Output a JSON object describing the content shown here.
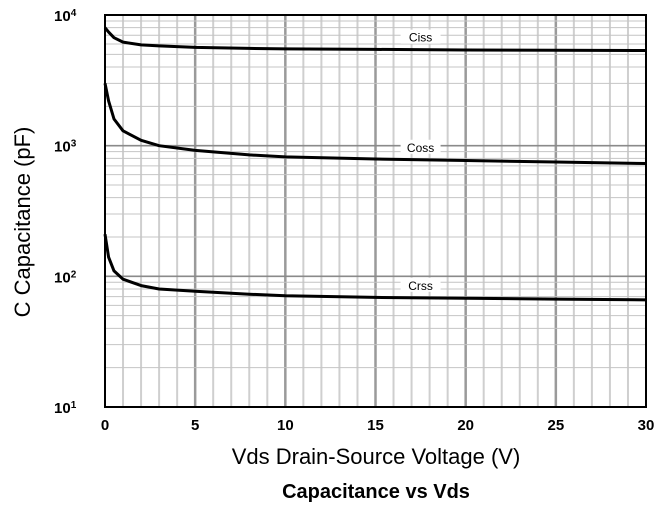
{
  "chart_data": {
    "type": "line",
    "title": "Capacitance vs Vds",
    "xlabel": "Vds Drain-Source Voltage (V)",
    "ylabel": "C Capacitance (pF)",
    "xlim": [
      0,
      30
    ],
    "ylim": [
      10,
      10000
    ],
    "yscale": "log",
    "grid": true,
    "x_ticks": [
      "0",
      "5",
      "10",
      "15",
      "20",
      "25",
      "30"
    ],
    "y_ticks": [
      {
        "base": "10",
        "exp": "1"
      },
      {
        "base": "10",
        "exp": "2"
      },
      {
        "base": "10",
        "exp": "3"
      },
      {
        "base": "10",
        "exp": "4"
      }
    ],
    "series": [
      {
        "name": "Ciss",
        "x": [
          0,
          0.2,
          0.5,
          1,
          2,
          3,
          5,
          8,
          10,
          15,
          20,
          25,
          30
        ],
        "y": [
          8000,
          7400,
          6700,
          6200,
          5900,
          5800,
          5650,
          5550,
          5500,
          5450,
          5400,
          5380,
          5350
        ]
      },
      {
        "name": "Coss",
        "x": [
          0,
          0.2,
          0.5,
          1,
          2,
          3,
          5,
          8,
          10,
          15,
          20,
          25,
          30
        ],
        "y": [
          3000,
          2200,
          1600,
          1300,
          1100,
          1000,
          920,
          850,
          820,
          790,
          770,
          750,
          730
        ]
      },
      {
        "name": "Crss",
        "x": [
          0,
          0.2,
          0.5,
          1,
          2,
          3,
          5,
          8,
          10,
          15,
          20,
          25,
          30
        ],
        "y": [
          210,
          140,
          110,
          95,
          85,
          80,
          77,
          73,
          71,
          69,
          68,
          67,
          66
        ]
      }
    ]
  }
}
